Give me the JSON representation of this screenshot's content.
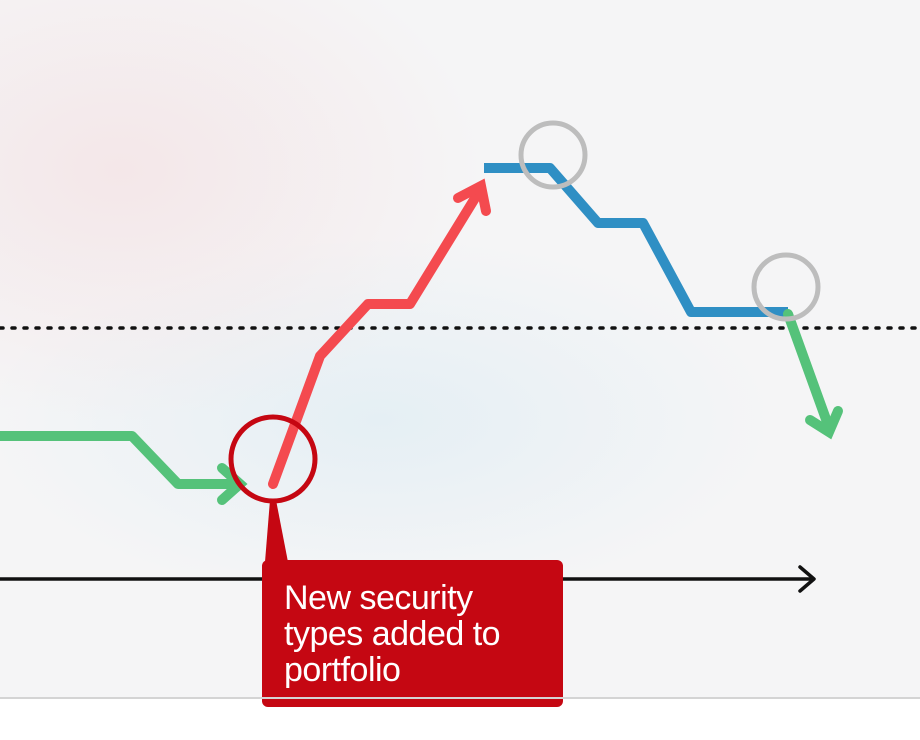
{
  "callout": {
    "text": "New security\ntypes added to\nportfolio"
  },
  "colors": {
    "green": "#55c27a",
    "red": "#f44a4f",
    "blue": "#2f8fc4",
    "callout": "#c50712",
    "marker_gray": "#bdbdbd",
    "axis": "#111111"
  }
}
